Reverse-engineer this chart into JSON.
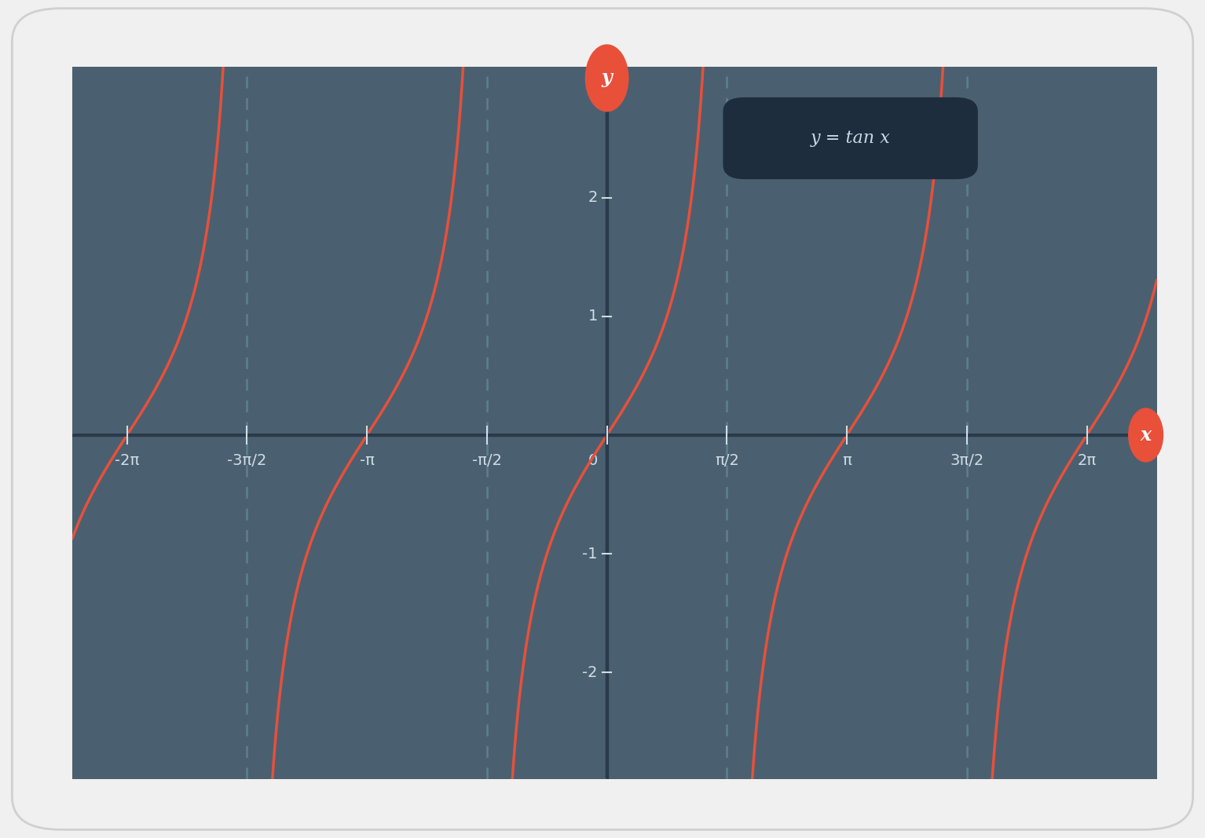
{
  "card_bg_color": "#f0f0f0",
  "plot_bg_color": "#4a6070",
  "curve_color": "#e8503a",
  "asymptote_color": "#6a8898",
  "axis_line_color": "#2a3a4a",
  "tick_label_color": "#d0dde6",
  "title": "y = tan x",
  "title_box_color": "#1e2d3d",
  "title_text_color": "#c8d8e4",
  "x_label": "x",
  "y_label": "y",
  "label_circle_color": "#e8503a",
  "label_text_color": "#ffffff",
  "xlim": [
    -7.0,
    7.2
  ],
  "ylim": [
    -2.9,
    3.1
  ],
  "yticks": [
    -2,
    -1,
    1,
    2
  ],
  "xtick_labels": [
    "-2π",
    "-3π/2",
    "-π",
    "-π/2",
    "0",
    "π/2",
    "π",
    "3π/2",
    "2π"
  ],
  "xtick_values": [
    -6.283185307,
    -4.71238898,
    -3.141592654,
    -1.570796327,
    0,
    1.570796327,
    3.141592654,
    4.71238898,
    6.283185307
  ],
  "asymptotes": [
    -4.71238898,
    -1.570796327,
    1.570796327,
    4.71238898
  ],
  "figsize": [
    15.34,
    10.67
  ],
  "dpi": 100
}
